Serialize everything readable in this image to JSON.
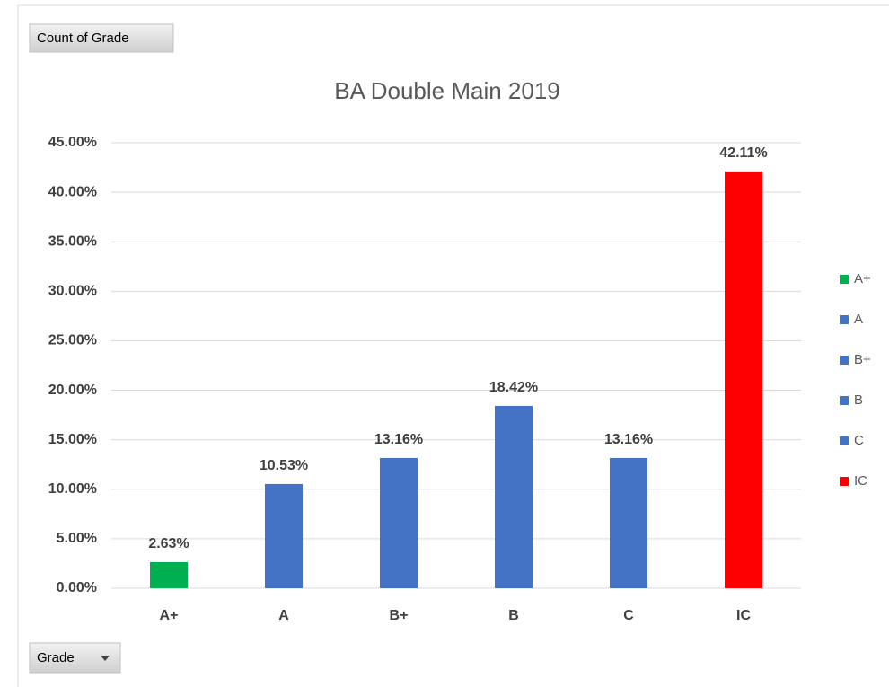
{
  "chart_data": {
    "type": "bar",
    "title": "BA Double Main 2019",
    "categories": [
      "A+",
      "A",
      "B+",
      "B",
      "C",
      "IC"
    ],
    "values": [
      2.63,
      10.53,
      13.16,
      18.42,
      13.16,
      42.11
    ],
    "value_labels": [
      "2.63%",
      "10.53%",
      "13.16%",
      "18.42%",
      "13.16%",
      "42.11%"
    ],
    "colors": [
      "#00b050",
      "#4472c4",
      "#4472c4",
      "#4472c4",
      "#4472c4",
      "#ff0000"
    ],
    "ylim": [
      0,
      45
    ],
    "yticks": [
      {
        "value": 0,
        "label": "0.00%"
      },
      {
        "value": 5,
        "label": "5.00%"
      },
      {
        "value": 10,
        "label": "10.00%"
      },
      {
        "value": 15,
        "label": "15.00%"
      },
      {
        "value": 20,
        "label": "20.00%"
      },
      {
        "value": 25,
        "label": "25.00%"
      },
      {
        "value": 30,
        "label": "30.00%"
      },
      {
        "value": 35,
        "label": "35.00%"
      },
      {
        "value": 40,
        "label": "40.00%"
      },
      {
        "value": 45,
        "label": "45.00%"
      }
    ],
    "grid": true,
    "legend": "right"
  },
  "pivot": {
    "values_field": "Count of Grade",
    "axis_field": "Grade"
  }
}
